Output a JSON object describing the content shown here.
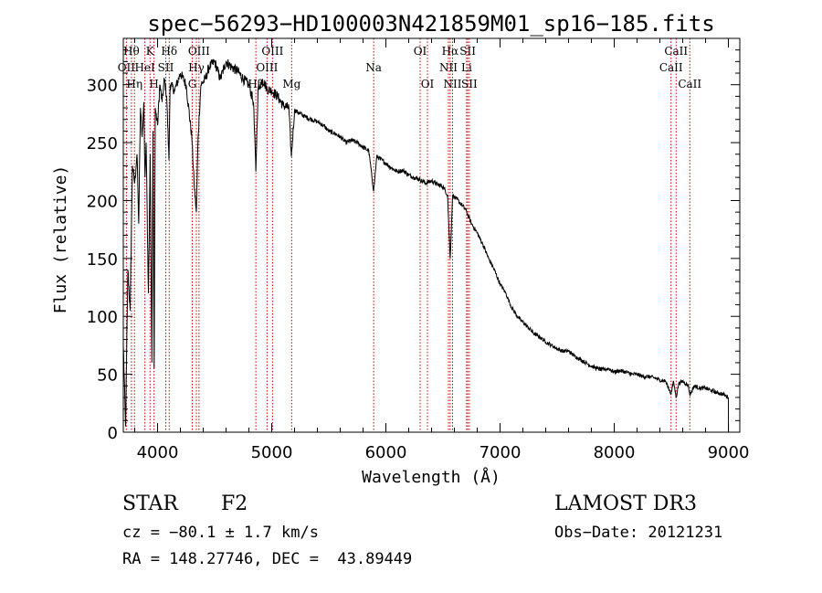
{
  "chart_data": {
    "type": "line",
    "title": "spec−56293−HD100003N421859M01_sp16−185.fits",
    "xlabel": "Wavelength (Å)",
    "ylabel": "Flux (relative)",
    "xlim": [
      3700,
      9100
    ],
    "ylim": [
      0,
      340
    ],
    "x_ticks": [
      4000,
      5000,
      6000,
      7000,
      8000,
      9000
    ],
    "y_ticks": [
      0,
      50,
      100,
      150,
      200,
      250,
      300
    ],
    "grid": false,
    "line_color": "#000000",
    "marker_color": "#cc0000",
    "series": [
      {
        "name": "flux",
        "points": [
          [
            3700,
            75
          ],
          [
            3720,
            5
          ],
          [
            3740,
            140
          ],
          [
            3760,
            105
          ],
          [
            3780,
            230
          ],
          [
            3800,
            215
          ],
          [
            3820,
            240
          ],
          [
            3835,
            180
          ],
          [
            3850,
            280
          ],
          [
            3865,
            255
          ],
          [
            3880,
            285
          ],
          [
            3890,
            220
          ],
          [
            3900,
            250
          ],
          [
            3920,
            120
          ],
          [
            3935,
            240
          ],
          [
            3950,
            60
          ],
          [
            3960,
            260
          ],
          [
            3970,
            55
          ],
          [
            3980,
            280
          ],
          [
            4000,
            265
          ],
          [
            4020,
            300
          ],
          [
            4040,
            285
          ],
          [
            4060,
            305
          ],
          [
            4080,
            290
          ],
          [
            4100,
            235
          ],
          [
            4110,
            300
          ],
          [
            4150,
            295
          ],
          [
            4200,
            310
          ],
          [
            4250,
            300
          ],
          [
            4300,
            255
          ],
          [
            4320,
            215
          ],
          [
            4340,
            190
          ],
          [
            4355,
            255
          ],
          [
            4380,
            300
          ],
          [
            4420,
            305
          ],
          [
            4450,
            315
          ],
          [
            4500,
            320
          ],
          [
            4550,
            305
          ],
          [
            4600,
            320
          ],
          [
            4650,
            315
          ],
          [
            4700,
            312
          ],
          [
            4750,
            305
          ],
          [
            4800,
            300
          ],
          [
            4840,
            285
          ],
          [
            4861,
            225
          ],
          [
            4880,
            295
          ],
          [
            4920,
            305
          ],
          [
            4960,
            296
          ],
          [
            5000,
            295
          ],
          [
            5050,
            290
          ],
          [
            5100,
            282
          ],
          [
            5150,
            280
          ],
          [
            5172,
            238
          ],
          [
            5200,
            278
          ],
          [
            5250,
            275
          ],
          [
            5300,
            272
          ],
          [
            5350,
            270
          ],
          [
            5400,
            268
          ],
          [
            5450,
            265
          ],
          [
            5500,
            260
          ],
          [
            5550,
            258
          ],
          [
            5600,
            255
          ],
          [
            5650,
            250
          ],
          [
            5700,
            252
          ],
          [
            5750,
            250
          ],
          [
            5800,
            246
          ],
          [
            5850,
            243
          ],
          [
            5893,
            208
          ],
          [
            5920,
            238
          ],
          [
            5950,
            236
          ],
          [
            6000,
            232
          ],
          [
            6050,
            228
          ],
          [
            6100,
            225
          ],
          [
            6150,
            226
          ],
          [
            6200,
            222
          ],
          [
            6250,
            220
          ],
          [
            6300,
            218
          ],
          [
            6350,
            215
          ],
          [
            6400,
            217
          ],
          [
            6450,
            214
          ],
          [
            6500,
            212
          ],
          [
            6540,
            205
          ],
          [
            6563,
            150
          ],
          [
            6585,
            205
          ],
          [
            6600,
            203
          ],
          [
            6650,
            198
          ],
          [
            6700,
            192
          ],
          [
            6750,
            180
          ],
          [
            6800,
            172
          ],
          [
            6850,
            162
          ],
          [
            6900,
            150
          ],
          [
            6950,
            140
          ],
          [
            7000,
            128
          ],
          [
            7050,
            120
          ],
          [
            7100,
            108
          ],
          [
            7150,
            100
          ],
          [
            7200,
            95
          ],
          [
            7250,
            90
          ],
          [
            7300,
            85
          ],
          [
            7350,
            82
          ],
          [
            7400,
            78
          ],
          [
            7450,
            75
          ],
          [
            7500,
            72
          ],
          [
            7550,
            70
          ],
          [
            7600,
            70
          ],
          [
            7650,
            66
          ],
          [
            7700,
            63
          ],
          [
            7750,
            60
          ],
          [
            7800,
            57
          ],
          [
            7850,
            55
          ],
          [
            7900,
            54
          ],
          [
            7950,
            55
          ],
          [
            8000,
            52
          ],
          [
            8050,
            53
          ],
          [
            8100,
            52
          ],
          [
            8150,
            50
          ],
          [
            8200,
            50
          ],
          [
            8250,
            48
          ],
          [
            8300,
            48
          ],
          [
            8350,
            47
          ],
          [
            8400,
            45
          ],
          [
            8450,
            44
          ],
          [
            8498,
            33
          ],
          [
            8520,
            44
          ],
          [
            8542,
            30
          ],
          [
            8565,
            42
          ],
          [
            8600,
            44
          ],
          [
            8650,
            40
          ],
          [
            8662,
            32
          ],
          [
            8700,
            40
          ],
          [
            8750,
            38
          ],
          [
            8800,
            38
          ],
          [
            8850,
            36
          ],
          [
            8900,
            34
          ],
          [
            8950,
            33
          ],
          [
            9000,
            30
          ],
          [
            9001,
            0
          ]
        ]
      }
    ],
    "line_markers": [
      {
        "wavelength": 3727,
        "label": "OII",
        "row": 1
      },
      {
        "wavelength": 3771,
        "label": "Hθ",
        "row": 0
      },
      {
        "wavelength": 3798,
        "label": "Hη",
        "row": 2
      },
      {
        "wavelength": 3889,
        "label": "HeI",
        "row": 1
      },
      {
        "wavelength": 3934,
        "label": "K",
        "row": 0
      },
      {
        "wavelength": 3969,
        "label": "H",
        "row": 2
      },
      {
        "wavelength": 4072,
        "label": "SII",
        "row": 1
      },
      {
        "wavelength": 4102,
        "label": "Hδ",
        "row": 0
      },
      {
        "wavelength": 4304,
        "label": "G",
        "row": 2
      },
      {
        "wavelength": 4340,
        "label": "Hγ",
        "row": 1
      },
      {
        "wavelength": 4363,
        "label": "OIII",
        "row": 0
      },
      {
        "wavelength": 4861,
        "label": "Hβ",
        "row": 2
      },
      {
        "wavelength": 4959,
        "label": "OIII",
        "row": 1
      },
      {
        "wavelength": 5007,
        "label": "OIII",
        "row": 0
      },
      {
        "wavelength": 5175,
        "label": "Mg",
        "row": 2
      },
      {
        "wavelength": 5893,
        "label": "Na",
        "row": 1
      },
      {
        "wavelength": 6300,
        "label": "OI",
        "row": 0
      },
      {
        "wavelength": 6364,
        "label": "OI",
        "row": 2
      },
      {
        "wavelength": 6548,
        "label": "NII",
        "row": 1
      },
      {
        "wavelength": 6563,
        "label": "Hα",
        "row": 0
      },
      {
        "wavelength": 6584,
        "label": "NII",
        "row": 2
      },
      {
        "wavelength": 6707,
        "label": "Li",
        "row": 1
      },
      {
        "wavelength": 6717,
        "label": "SII",
        "row": 0
      },
      {
        "wavelength": 6731,
        "label": "SII",
        "row": 2
      },
      {
        "wavelength": 8498,
        "label": "CaII",
        "row": 1
      },
      {
        "wavelength": 8542,
        "label": "CaII",
        "row": 0
      },
      {
        "wavelength": 8662,
        "label": "CaII",
        "row": 2
      }
    ]
  },
  "footer": {
    "object_type": "STAR",
    "subclass": "F2",
    "survey": "LAMOST DR3",
    "velocity": "cz = −80.1 ± 1.7 km/s",
    "obs_date": "Obs−Date: 20121231",
    "coords": "RA = 148.27746, DEC =  43.89449"
  }
}
